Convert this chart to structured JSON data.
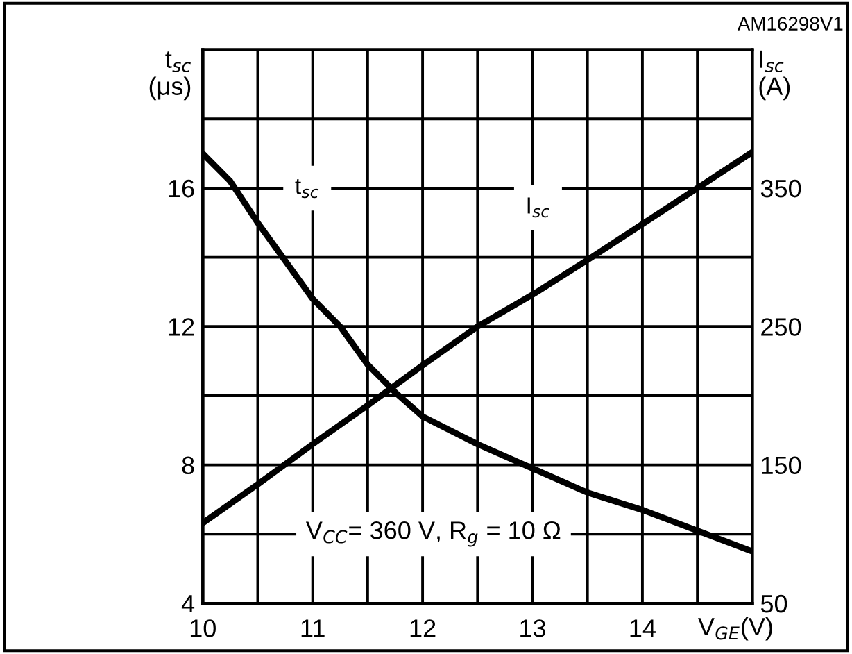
{
  "chart_data": {
    "type": "line",
    "xlabel": "V$_{GE}$(V)",
    "ylabel": "t$_{sc}$\n(μs)",
    "y2label": "I$_{sc}$\n(A)",
    "x": [
      10,
      10.25,
      10.5,
      11,
      11.25,
      11.5,
      11.75,
      12,
      12.5,
      13,
      13.5,
      14,
      14.5,
      15
    ],
    "series": [
      {
        "name": "t$_{sc}$",
        "color": "#000000",
        "values": [
          17.0,
          16.2,
          15.0,
          12.8,
          12.0,
          10.9,
          10.1,
          9.4,
          8.6,
          7.9,
          7.2,
          6.7,
          6.1,
          5.5
        ]
      },
      {
        "name": "I$_{sc}$",
        "color": "#000000",
        "axis": "y2",
        "x": [
          10,
          10.5,
          11,
          11.5,
          12,
          12.5,
          13,
          13.5,
          14,
          14.5,
          15
        ],
        "values": [
          108,
          136,
          165,
          193,
          222,
          250,
          273,
          298,
          324,
          350,
          376
        ]
      }
    ],
    "xlim": [
      10,
      15
    ],
    "xticks": [
      10,
      {
        "value": 10.5,
        "label": null
      },
      11,
      {
        "value": 11.5,
        "label": null
      },
      12,
      {
        "value": 12.5,
        "label": null
      },
      13,
      {
        "value": 13.5,
        "label": null
      },
      14,
      {
        "value": 14.5,
        "label": null
      },
      {
        "value": 15,
        "label": null
      }
    ],
    "ylim": [
      4,
      20
    ],
    "yticks": [
      4,
      {
        "value": 6,
        "label": null
      },
      8,
      {
        "value": 10,
        "label": null
      },
      12,
      {
        "value": 14,
        "label": null
      },
      16,
      {
        "value": 18,
        "label": null
      },
      {
        "value": 20,
        "label": null
      }
    ],
    "y2lim": [
      50,
      450
    ],
    "y2ticks": [
      50,
      150,
      250,
      350
    ],
    "grid": true,
    "legend": false,
    "marker": "none",
    "line_style": "solid",
    "annotations": [
      "V$_{CC}$= 360 V, R$_{g}$ = 10 Ω",
      "AM16298V1"
    ]
  }
}
